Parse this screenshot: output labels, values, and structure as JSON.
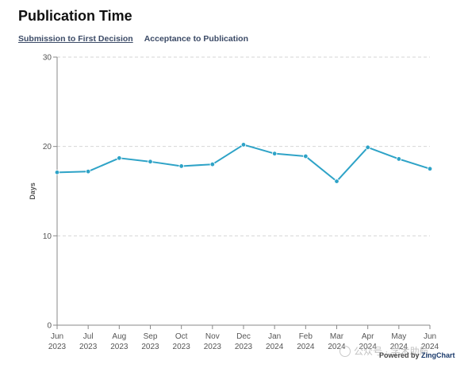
{
  "title": "Publication Time",
  "tabs": [
    {
      "label": "Submission to First Decision",
      "active": true
    },
    {
      "label": "Acceptance to Publication",
      "active": false
    }
  ],
  "chart_data": {
    "type": "line",
    "ylabel": "Days",
    "ylim": [
      0,
      30
    ],
    "yticks": [
      0,
      10,
      20,
      30
    ],
    "grid": true,
    "line_color": "#2ea3c7",
    "categories": [
      [
        "Jun",
        "2023"
      ],
      [
        "Jul",
        "2023"
      ],
      [
        "Aug",
        "2023"
      ],
      [
        "Sep",
        "2023"
      ],
      [
        "Oct",
        "2023"
      ],
      [
        "Nov",
        "2023"
      ],
      [
        "Dec",
        "2023"
      ],
      [
        "Jan",
        "2024"
      ],
      [
        "Feb",
        "2024"
      ],
      [
        "Mar",
        "2024"
      ],
      [
        "Apr",
        "2024"
      ],
      [
        "May",
        "2024"
      ],
      [
        "Jun",
        "2024"
      ]
    ],
    "series": [
      {
        "values": [
          17.1,
          17.2,
          18.7,
          18.3,
          17.8,
          18.0,
          20.2,
          19.2,
          18.9,
          16.1,
          19.9,
          18.6,
          17.5
        ]
      }
    ]
  },
  "credit": {
    "prefix": "Powered by",
    "brand": "ZingChart"
  },
  "watermark": "公众号 · 学术助航"
}
